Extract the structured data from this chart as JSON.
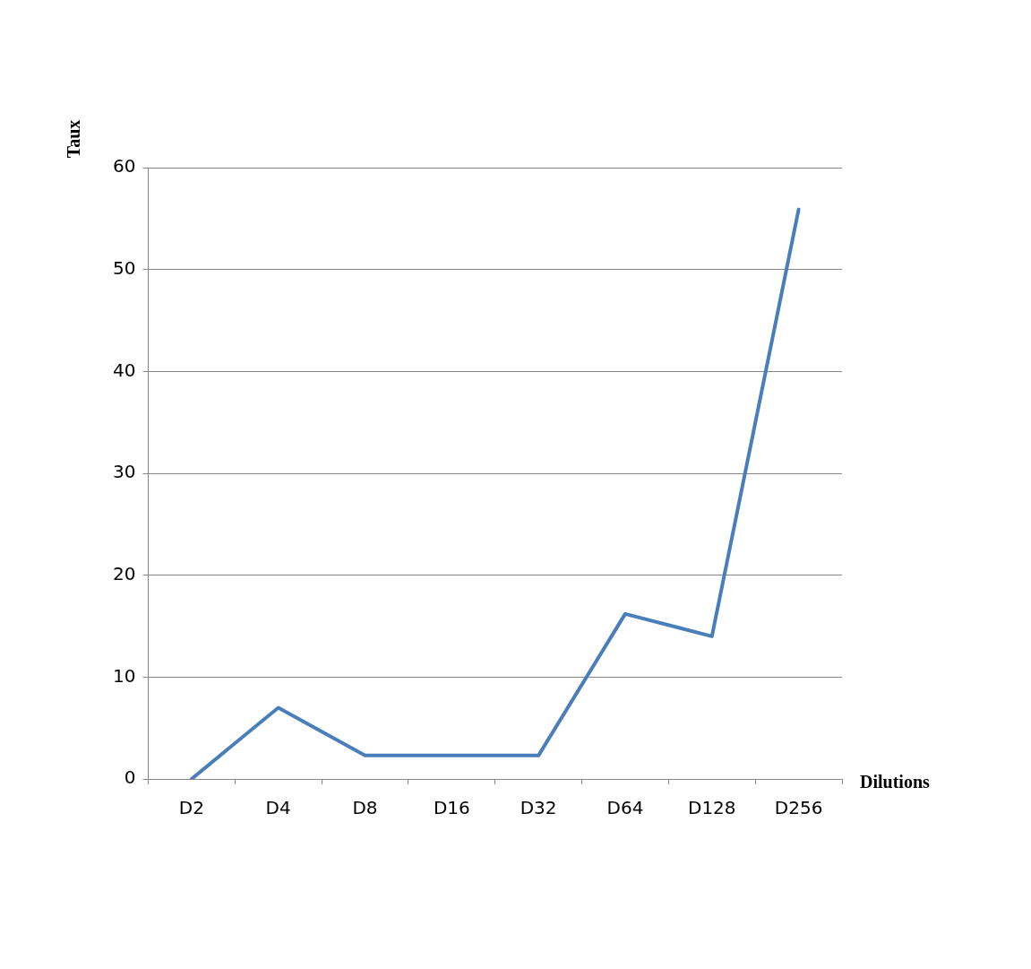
{
  "chart_data": {
    "type": "line",
    "xlabel": "Dilutions",
    "ylabel": "Taux",
    "categories": [
      "D2",
      "D4",
      "D8",
      "D16",
      "D32",
      "D64",
      "D128",
      "D256"
    ],
    "series": [
      {
        "color": "#4a7ebb",
        "values": [
          0,
          7,
          2.3,
          2.3,
          2.3,
          16.2,
          14,
          55.9
        ]
      }
    ],
    "ylim": [
      0,
      60
    ],
    "yticks": [
      0,
      10,
      20,
      30,
      40,
      50,
      60
    ],
    "grid": "y",
    "legend": false,
    "marker": "none",
    "line_style": "solid"
  }
}
